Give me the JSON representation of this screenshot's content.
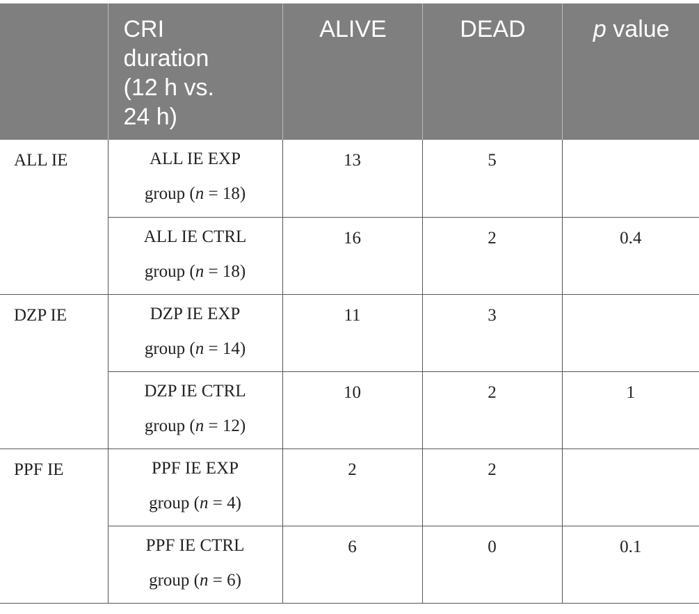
{
  "header": {
    "col0": "",
    "col1": "CRI duration (12 h vs. 24 h)",
    "col1_lines": [
      "CRI",
      "duration",
      "(12 h vs.",
      "24 h)"
    ],
    "col2": "ALIVE",
    "col3": "DEAD",
    "col4_italic": "p",
    "col4_rest": " value"
  },
  "sections": [
    {
      "label": "ALL IE",
      "rows": [
        {
          "group_line1": "ALL IE EXP",
          "group_pre": "group (",
          "n_symbol": "n",
          "n_value": " = 18)",
          "alive": "13",
          "dead": "5",
          "p": ""
        },
        {
          "group_line1": "ALL IE CTRL",
          "group_pre": "group (",
          "n_symbol": "n",
          "n_value": " = 18)",
          "alive": "16",
          "dead": "2",
          "p": "0.4"
        }
      ]
    },
    {
      "label": "DZP IE",
      "rows": [
        {
          "group_line1": "DZP IE EXP",
          "group_pre": "group (",
          "n_symbol": "n",
          "n_value": " = 14)",
          "alive": "11",
          "dead": "3",
          "p": ""
        },
        {
          "group_line1": "DZP IE CTRL",
          "group_pre": "group (",
          "n_symbol": "n",
          "n_value": " = 12)",
          "alive": "10",
          "dead": "2",
          "p": "1"
        }
      ]
    },
    {
      "label": "PPF IE",
      "rows": [
        {
          "group_line1": "PPF IE EXP",
          "group_pre": "group (",
          "n_symbol": "n",
          "n_value": " = 4)",
          "alive": "2",
          "dead": "2",
          "p": ""
        },
        {
          "group_line1": "PPF IE CTRL",
          "group_pre": "group (",
          "n_symbol": "n",
          "n_value": " = 6)",
          "alive": "6",
          "dead": "0",
          "p": "0.1"
        }
      ]
    }
  ]
}
